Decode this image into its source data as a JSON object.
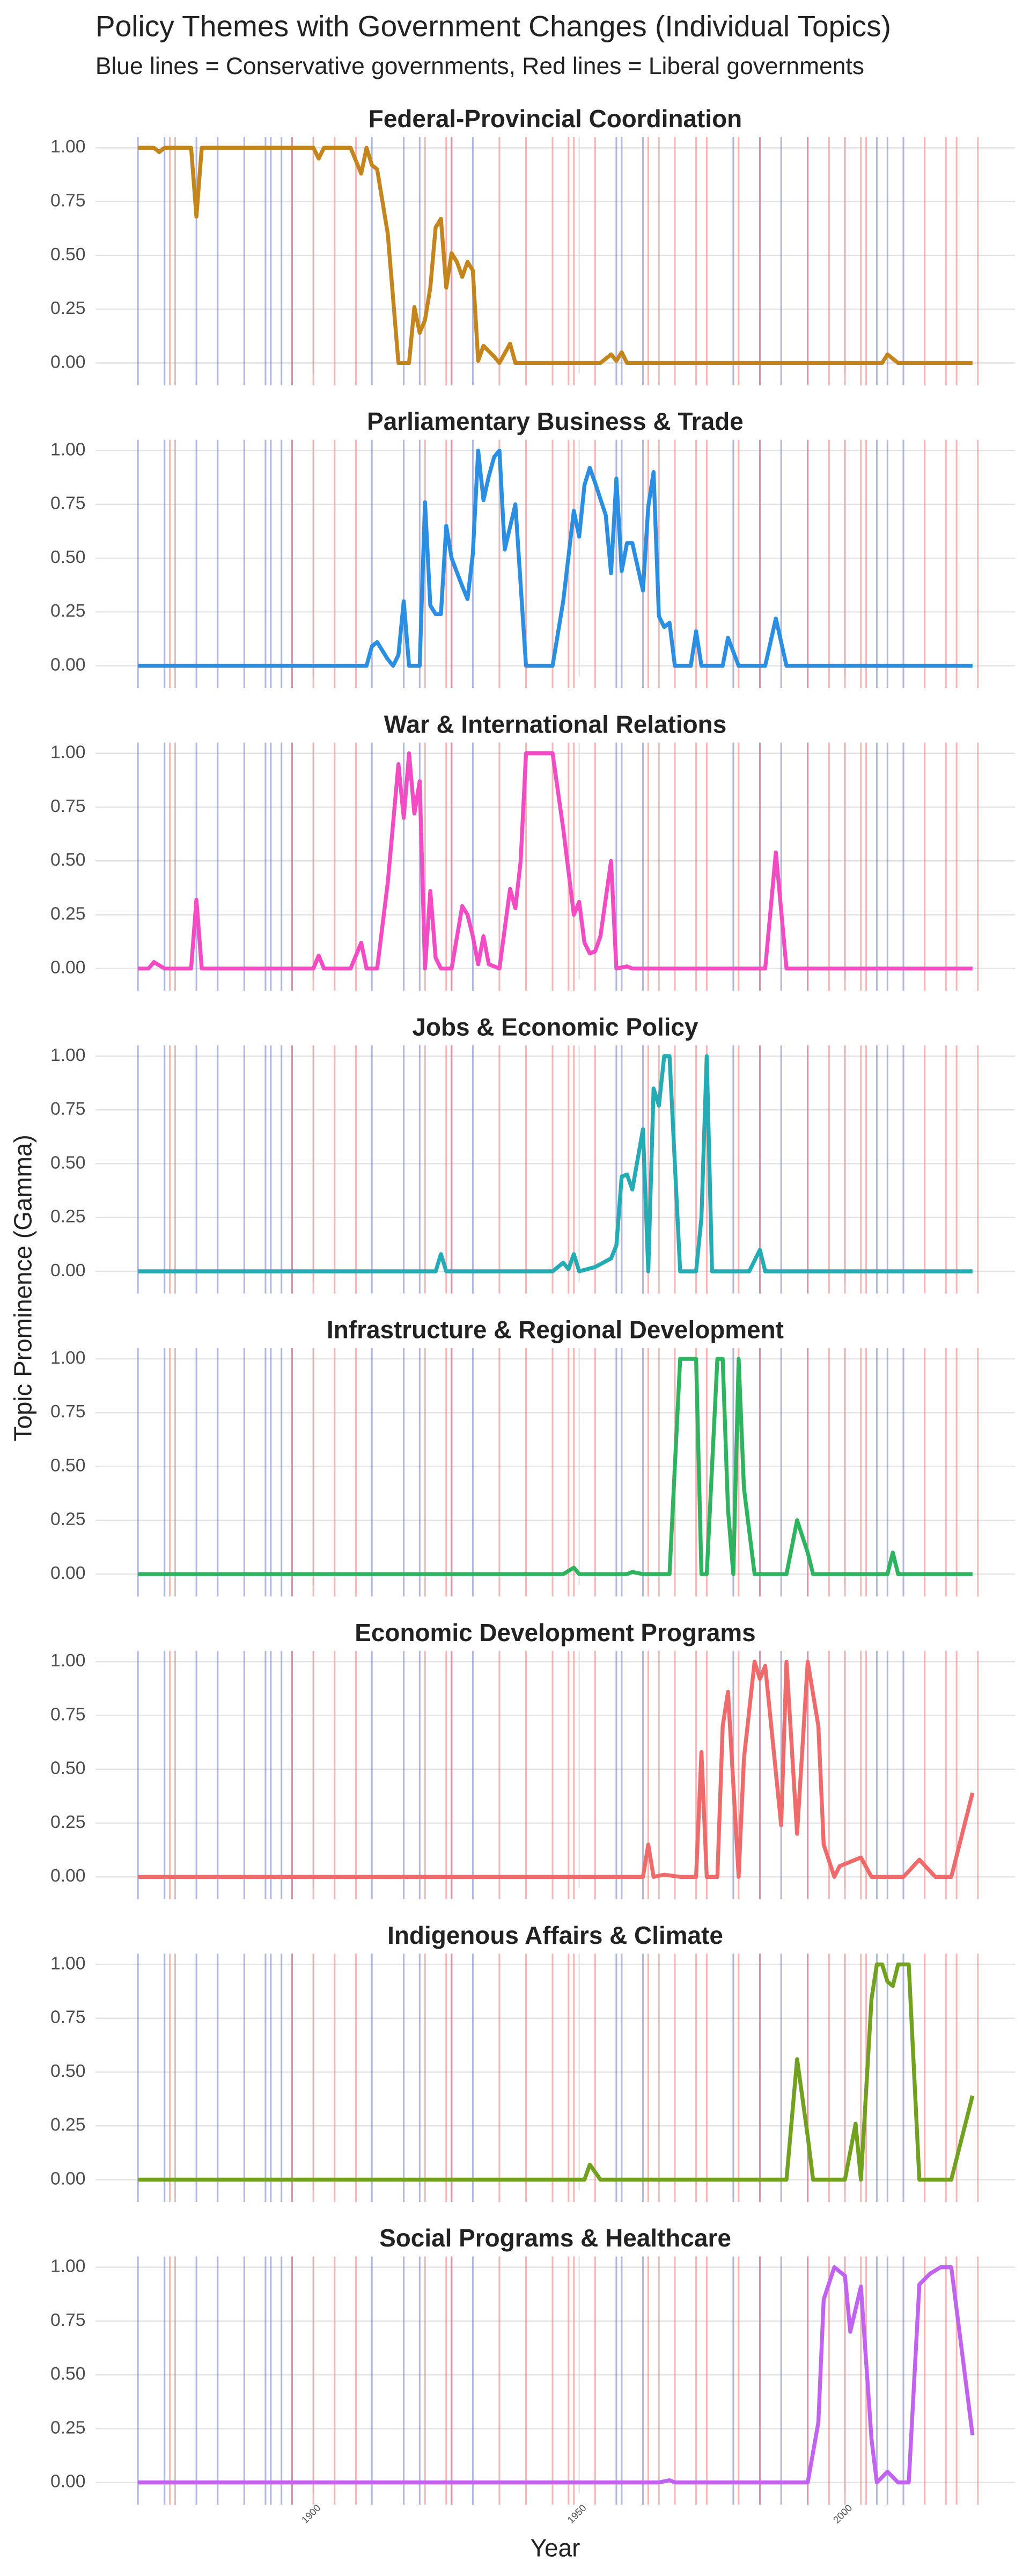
{
  "title": "Policy Themes with Government Changes (Individual Topics)",
  "subtitle": "Blue lines = Conservative governments, Red lines = Liberal governments",
  "ylabel": "Topic Prominence (Gamma)",
  "xlabel": "Year",
  "xlim": [
    1859,
    2032
  ],
  "xticks": [
    1900,
    1950,
    2000
  ],
  "grid": true,
  "government_changes": {
    "conservative_color": "#6f7cc9",
    "conservative": [
      1867,
      1872,
      1878,
      1882,
      1887,
      1891,
      1892,
      1894,
      1896,
      1911,
      1917,
      1920,
      1926,
      1930,
      1957,
      1958,
      1962,
      1979,
      1984,
      1988,
      1993,
      2006,
      2008,
      2011
    ],
    "liberal_color": "#f07a7a",
    "liberal": [
      1873,
      1874,
      1896,
      1900,
      1904,
      1908,
      1921,
      1925,
      1926,
      1935,
      1940,
      1945,
      1948,
      1949,
      1953,
      1963,
      1965,
      1968,
      1972,
      1974,
      1980,
      1984,
      1993,
      1997,
      2000,
      2003,
      2004,
      2015,
      2019,
      2021,
      2025
    ]
  },
  "chart_data": [
    {
      "type": "line",
      "title": "Federal-Provincial Coordination",
      "color": "#c4861c",
      "x": [
        1867,
        1870,
        1871,
        1872,
        1877,
        1878,
        1879,
        1900,
        1901,
        1902,
        1907,
        1909,
        1910,
        1911,
        1912,
        1914,
        1916,
        1918,
        1919,
        1920,
        1921,
        1922,
        1923,
        1924,
        1925,
        1926,
        1927,
        1928,
        1929,
        1930,
        1931,
        1932,
        1934,
        1935,
        1937,
        1938,
        1954,
        1956,
        1957,
        1958,
        1959,
        2007,
        2008,
        2010,
        2024
      ],
      "values": [
        1.0,
        1.0,
        0.98,
        1.0,
        1.0,
        0.68,
        1.0,
        1.0,
        0.95,
        1.0,
        1.0,
        0.88,
        1.0,
        0.92,
        0.9,
        0.6,
        0.0,
        0.0,
        0.26,
        0.14,
        0.2,
        0.35,
        0.63,
        0.67,
        0.35,
        0.51,
        0.47,
        0.4,
        0.47,
        0.43,
        0.01,
        0.08,
        0.03,
        0.0,
        0.09,
        0.0,
        0.0,
        0.04,
        0.01,
        0.05,
        0.0,
        0.0,
        0.04,
        0.0,
        0.0
      ],
      "ylim": [
        -0.05,
        1.05
      ],
      "yticks": [
        {
          "value": 0,
          "label": "0.00"
        },
        {
          "value": 0.25,
          "label": "0.25"
        },
        {
          "value": 0.5,
          "label": "0.50"
        },
        {
          "value": 0.75,
          "label": "0.75"
        },
        {
          "value": 1,
          "label": "1.00"
        }
      ]
    },
    {
      "type": "line",
      "title": "Parliamentary Business & Trade",
      "color": "#2a8fe2",
      "x": [
        1867,
        1910,
        1911,
        1912,
        1914,
        1915,
        1916,
        1917,
        1918,
        1920,
        1921,
        1922,
        1923,
        1924,
        1925,
        1926,
        1928,
        1929,
        1930,
        1931,
        1932,
        1933,
        1934,
        1935,
        1936,
        1938,
        1940,
        1945,
        1947,
        1949,
        1950,
        1951,
        1952,
        1953,
        1955,
        1956,
        1957,
        1958,
        1959,
        1960,
        1962,
        1963,
        1964,
        1965,
        1966,
        1967,
        1968,
        1971,
        1972,
        1973,
        1977,
        1978,
        1980,
        1985,
        1987,
        1989,
        2024
      ],
      "values": [
        0,
        0,
        0.09,
        0.11,
        0.03,
        0.0,
        0.05,
        0.3,
        0,
        0,
        0.76,
        0.28,
        0.24,
        0.24,
        0.65,
        0.5,
        0.37,
        0.31,
        0.52,
        1.0,
        0.77,
        0.88,
        0.97,
        1.0,
        0.54,
        0.75,
        0,
        0,
        0.3,
        0.72,
        0.6,
        0.84,
        0.92,
        0.85,
        0.7,
        0.43,
        0.87,
        0.44,
        0.57,
        0.57,
        0.35,
        0.74,
        0.9,
        0.23,
        0.18,
        0.2,
        0.0,
        0.0,
        0.16,
        0.0,
        0.0,
        0.13,
        0.0,
        0.0,
        0.22,
        0.0,
        0
      ],
      "ylim": [
        -0.05,
        1.05
      ],
      "yticks": [
        {
          "value": 0,
          "label": "0.00"
        },
        {
          "value": 0.25,
          "label": "0.25"
        },
        {
          "value": 0.5,
          "label": "0.50"
        },
        {
          "value": 0.75,
          "label": "0.75"
        },
        {
          "value": 1,
          "label": "1.00"
        }
      ]
    },
    {
      "type": "line",
      "title": "War & International Relations",
      "color": "#f24bc3",
      "x": [
        1867,
        1869,
        1870,
        1872,
        1877,
        1878,
        1879,
        1900,
        1901,
        1902,
        1907,
        1909,
        1910,
        1912,
        1914,
        1916,
        1917,
        1918,
        1919,
        1920,
        1921,
        1922,
        1923,
        1924,
        1926,
        1928,
        1929,
        1930,
        1931,
        1932,
        1933,
        1935,
        1937,
        1938,
        1939,
        1940,
        1945,
        1947,
        1949,
        1950,
        1951,
        1952,
        1953,
        1954,
        1956,
        1957,
        1959,
        1960,
        1985,
        1987,
        1989,
        2024
      ],
      "values": [
        0,
        0,
        0.03,
        0,
        0,
        0.32,
        0,
        0,
        0.06,
        0,
        0,
        0.12,
        0,
        0,
        0.4,
        0.95,
        0.7,
        1.0,
        0.72,
        0.87,
        0,
        0.36,
        0.05,
        0.0,
        0.0,
        0.29,
        0.25,
        0.15,
        0.02,
        0.15,
        0.02,
        0.0,
        0.37,
        0.28,
        0.5,
        1.0,
        1.0,
        0.65,
        0.25,
        0.31,
        0.12,
        0.07,
        0.08,
        0.15,
        0.5,
        0.0,
        0.01,
        0.0,
        0.0,
        0.54,
        0.0,
        0
      ],
      "ylim": [
        -0.05,
        1.05
      ],
      "yticks": [
        {
          "value": 0,
          "label": "0.00"
        },
        {
          "value": 0.25,
          "label": "0.25"
        },
        {
          "value": 0.5,
          "label": "0.50"
        },
        {
          "value": 0.75,
          "label": "0.75"
        },
        {
          "value": 1,
          "label": "1.00"
        }
      ]
    },
    {
      "type": "line",
      "title": "Jobs & Economic Policy",
      "color": "#23acb3",
      "x": [
        1867,
        1923,
        1924,
        1925,
        1945,
        1947,
        1948,
        1949,
        1950,
        1953,
        1956,
        1957,
        1958,
        1959,
        1960,
        1962,
        1963,
        1964,
        1965,
        1966,
        1967,
        1969,
        1972,
        1973,
        1974,
        1975,
        1982,
        1984,
        1985,
        2024
      ],
      "values": [
        0,
        0,
        0.08,
        0,
        0,
        0.04,
        0.01,
        0.08,
        0,
        0.02,
        0.06,
        0.12,
        0.44,
        0.45,
        0.38,
        0.66,
        0.0,
        0.85,
        0.77,
        1.0,
        1.0,
        0.0,
        0.0,
        0.25,
        1.0,
        0.0,
        0.0,
        0.1,
        0.0,
        0
      ],
      "ylim": [
        -0.05,
        1.05
      ],
      "yticks": [
        {
          "value": 0,
          "label": "0.00"
        },
        {
          "value": 0.25,
          "label": "0.25"
        },
        {
          "value": 0.5,
          "label": "0.50"
        },
        {
          "value": 0.75,
          "label": "0.75"
        },
        {
          "value": 1,
          "label": "1.00"
        }
      ]
    },
    {
      "type": "line",
      "title": "Infrastructure & Regional Development",
      "color": "#2eb35f",
      "x": [
        1867,
        1947,
        1949,
        1950,
        1959,
        1960,
        1962,
        1967,
        1969,
        1972,
        1973,
        1974,
        1976,
        1977,
        1978,
        1979,
        1980,
        1981,
        1983,
        1989,
        1991,
        1993,
        1994,
        2008,
        2009,
        2010,
        2024
      ],
      "values": [
        0,
        0,
        0.03,
        0,
        0,
        0.01,
        0,
        0,
        1.0,
        1.0,
        0,
        0,
        1.0,
        1.0,
        0.3,
        0,
        1.0,
        0.4,
        0,
        0,
        0.25,
        0.1,
        0,
        0,
        0.1,
        0,
        0
      ],
      "ylim": [
        -0.05,
        1.05
      ],
      "yticks": [
        {
          "value": 0,
          "label": "0.00"
        },
        {
          "value": 0.25,
          "label": "0.25"
        },
        {
          "value": 0.5,
          "label": "0.50"
        },
        {
          "value": 0.75,
          "label": "0.75"
        },
        {
          "value": 1,
          "label": "1.00"
        }
      ]
    },
    {
      "type": "line",
      "title": "Economic Development Programs",
      "color": "#ef6a6a",
      "x": [
        1867,
        1962,
        1963,
        1964,
        1966,
        1969,
        1972,
        1973,
        1974,
        1976,
        1977,
        1978,
        1980,
        1981,
        1983,
        1984,
        1985,
        1988,
        1989,
        1991,
        1993,
        1995,
        1996,
        1998,
        1999,
        2003,
        2005,
        2011,
        2014,
        2017,
        2020,
        2024
      ],
      "values": [
        0,
        0,
        0.15,
        0.0,
        0.01,
        0,
        0,
        0.58,
        0,
        0,
        0.7,
        0.86,
        0,
        0.55,
        1.0,
        0.92,
        0.98,
        0.24,
        1.0,
        0.2,
        1.0,
        0.7,
        0.15,
        0.0,
        0.05,
        0.09,
        0,
        0,
        0.08,
        0,
        0.0,
        0.39
      ],
      "ylim": [
        -0.05,
        1.05
      ],
      "yticks": [
        {
          "value": 0,
          "label": "0.00"
        },
        {
          "value": 0.25,
          "label": "0.25"
        },
        {
          "value": 0.5,
          "label": "0.50"
        },
        {
          "value": 0.75,
          "label": "0.75"
        },
        {
          "value": 1,
          "label": "1.00"
        }
      ]
    },
    {
      "type": "line",
      "title": "Indigenous Affairs & Climate",
      "color": "#72a01f",
      "x": [
        1867,
        1951,
        1952,
        1954,
        1989,
        1991,
        1993,
        1994,
        2000,
        2002,
        2003,
        2005,
        2006,
        2007,
        2008,
        2009,
        2010,
        2012,
        2014,
        2020,
        2024
      ],
      "values": [
        0,
        0,
        0.07,
        0,
        0,
        0.56,
        0.2,
        0,
        0,
        0.26,
        0,
        0.84,
        1.0,
        1.0,
        0.92,
        0.9,
        1.0,
        1.0,
        0,
        0,
        0.39
      ],
      "ylim": [
        -0.05,
        1.05
      ],
      "yticks": [
        {
          "value": 0,
          "label": "0.00"
        },
        {
          "value": 0.25,
          "label": "0.25"
        },
        {
          "value": 0.5,
          "label": "0.50"
        },
        {
          "value": 0.75,
          "label": "0.75"
        },
        {
          "value": 1,
          "label": "1.00"
        }
      ]
    },
    {
      "type": "line",
      "title": "Social Programs & Healthcare",
      "color": "#c262f1",
      "x": [
        1867,
        1965,
        1967,
        1968,
        1993,
        1995,
        1996,
        1998,
        2000,
        2001,
        2003,
        2005,
        2006,
        2008,
        2010,
        2012,
        2014,
        2016,
        2018,
        2020,
        2024
      ],
      "values": [
        0,
        0,
        0.01,
        0,
        0,
        0.28,
        0.85,
        1.0,
        0.96,
        0.7,
        0.91,
        0.2,
        0.0,
        0.05,
        0,
        0,
        0.92,
        0.97,
        1.0,
        1.0,
        0.22
      ],
      "ylim": [
        -0.05,
        1.05
      ],
      "yticks": [
        {
          "value": 0,
          "label": "0.00"
        },
        {
          "value": 0.25,
          "label": "0.25"
        },
        {
          "value": 0.5,
          "label": "0.50"
        },
        {
          "value": 0.75,
          "label": "0.75"
        },
        {
          "value": 1,
          "label": "1.00"
        }
      ]
    }
  ]
}
